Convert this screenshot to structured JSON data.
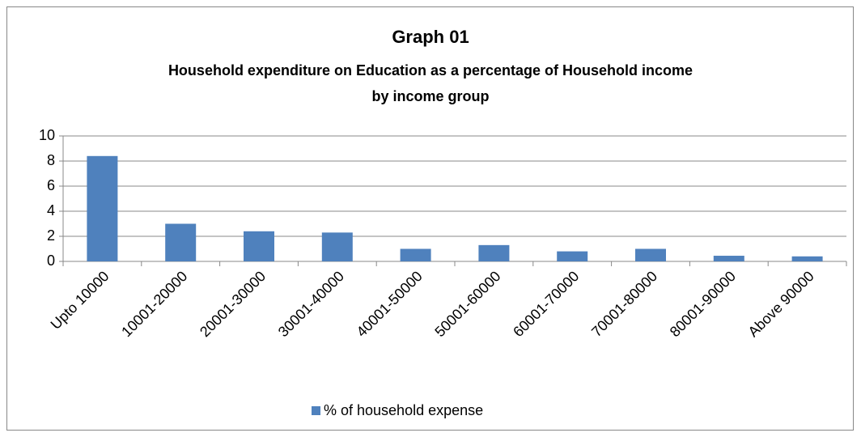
{
  "chart_data": {
    "type": "bar",
    "title": "Graph 01",
    "subtitle": [
      "Household expenditure on Education as a percentage of Household income",
      "by income group"
    ],
    "categories": [
      "Upto 10000",
      "10001-20000",
      "20001-30000",
      "30001-40000",
      "40001-50000",
      "50001-60000",
      "60001-70000",
      "70001-80000",
      "80001-90000",
      "Above 90000"
    ],
    "series": [
      {
        "name": "% of household expense",
        "color": "#4f81bd",
        "values": [
          8.4,
          3.0,
          2.4,
          2.3,
          1.0,
          1.3,
          0.8,
          1.0,
          0.45,
          0.4
        ]
      }
    ],
    "ylim": [
      0,
      10
    ],
    "yticks": [
      0,
      2,
      4,
      6,
      8,
      10
    ],
    "grid": true,
    "legend": "bottom"
  }
}
